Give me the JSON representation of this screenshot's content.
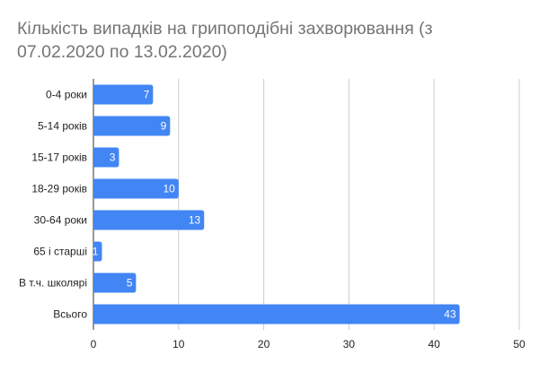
{
  "chart_data": {
    "type": "bar",
    "orientation": "horizontal",
    "title": "Кількість випадків на грипоподібні захворювання (з 07.02.2020 по 13.02.2020)",
    "categories": [
      "0-4 роки",
      "5-14 років",
      "15-17 років",
      "18-29 років",
      "30-64 роки",
      "65 і старші",
      "В т.ч. школярі",
      "Всього"
    ],
    "values": [
      7,
      9,
      3,
      10,
      13,
      1,
      5,
      43
    ],
    "xlim": [
      0,
      50
    ],
    "xticks": [
      0,
      10,
      20,
      30,
      40,
      50
    ],
    "xlabel": "",
    "ylabel": "",
    "grid": true,
    "legend": "none",
    "bar_color": "#4285f4",
    "grid_color": "#cccccc",
    "axis_color": "#333333",
    "show_data_labels": true
  }
}
